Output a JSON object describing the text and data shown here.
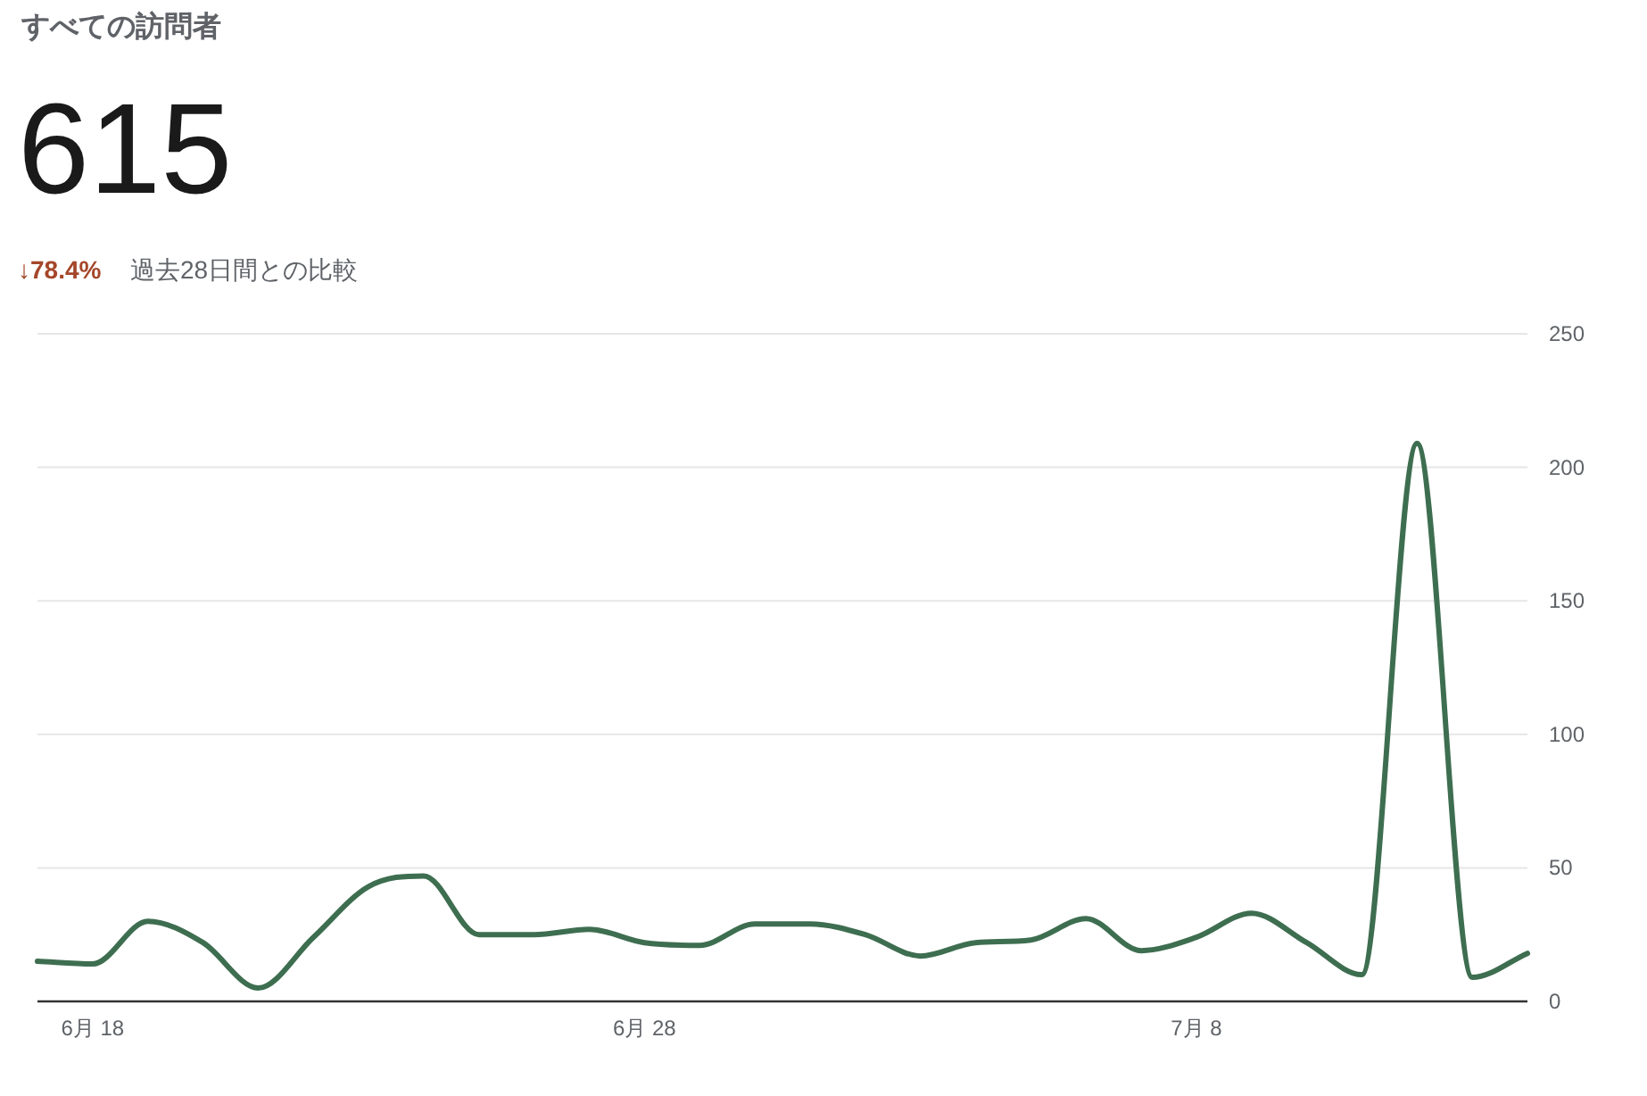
{
  "chart_data": {
    "type": "line",
    "title": "すべての訪問者",
    "annotations": [
      "615",
      "↓78.4%",
      "過去28日間との比較"
    ],
    "x": [
      "--06-17",
      "--06-18",
      "--06-19",
      "--06-20",
      "--06-21",
      "--06-22",
      "--06-23",
      "--06-24",
      "--06-25",
      "--06-26",
      "--06-27",
      "--06-28",
      "--06-29",
      "--06-30",
      "--07-01",
      "--07-02",
      "--07-03",
      "--07-04",
      "--07-05",
      "--07-06",
      "--07-07",
      "--07-08",
      "--07-09",
      "--07-10",
      "--07-11",
      "--07-12",
      "--07-13",
      "--07-14"
    ],
    "series": [
      {
        "color": "#3e6e50",
        "values": [
          15,
          14,
          30,
          22,
          5,
          24,
          43,
          47,
          25,
          25,
          27,
          22,
          21,
          29,
          29,
          25,
          17,
          22,
          23,
          31,
          19,
          24,
          33,
          22,
          10,
          209,
          9,
          18
        ]
      }
    ],
    "xlim": [
      "--06-17",
      "--07-14"
    ],
    "xticks": [
      {
        "value": "--06-18",
        "label": "6月 18"
      },
      {
        "value": "--06-28",
        "label": "6月 28"
      },
      {
        "value": "--07-08",
        "label": "7月 8"
      }
    ],
    "ylim": [
      0,
      250
    ],
    "yticks": [
      0,
      50,
      100,
      150,
      200,
      250
    ],
    "grid": "y",
    "marker": "none",
    "line_style": "solid"
  }
}
